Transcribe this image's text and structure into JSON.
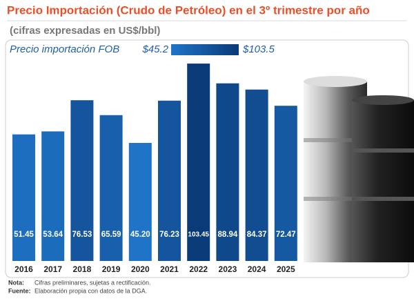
{
  "chart_data": {
    "type": "bar",
    "title": "Precio Importación (Crudo de Petróleo) en el 3º trimestre por año",
    "subtitle": "(cifras expresadas en US$/bbl)",
    "categories": [
      "2016",
      "2017",
      "2018",
      "2019",
      "2020",
      "2021",
      "2022",
      "2023",
      "2024",
      "2025"
    ],
    "values": [
      51.45,
      53.64,
      76.53,
      65.59,
      45.2,
      76.23,
      103.45,
      88.94,
      84.37,
      72.47
    ],
    "value_labels": [
      "51.45",
      "53.64",
      "76.53",
      "65.59",
      "45.20",
      "76.23",
      "103.45",
      "88.94",
      "84.37",
      "72.47"
    ],
    "color_scale": {
      "label": "Precio importación FOB",
      "min": {
        "value": 45.2,
        "label": "$45.2"
      },
      "max": {
        "value": 103.5,
        "label": "$103.5"
      },
      "colors": [
        "#1f74c8",
        "#0b3a78"
      ]
    },
    "notes": [
      {
        "label": "Nota:",
        "text": "Cifras preliminares, sujetas a rectificación."
      },
      {
        "label": "Fuente:",
        "text": "Elaboración propia con datos de la DGA."
      }
    ]
  }
}
